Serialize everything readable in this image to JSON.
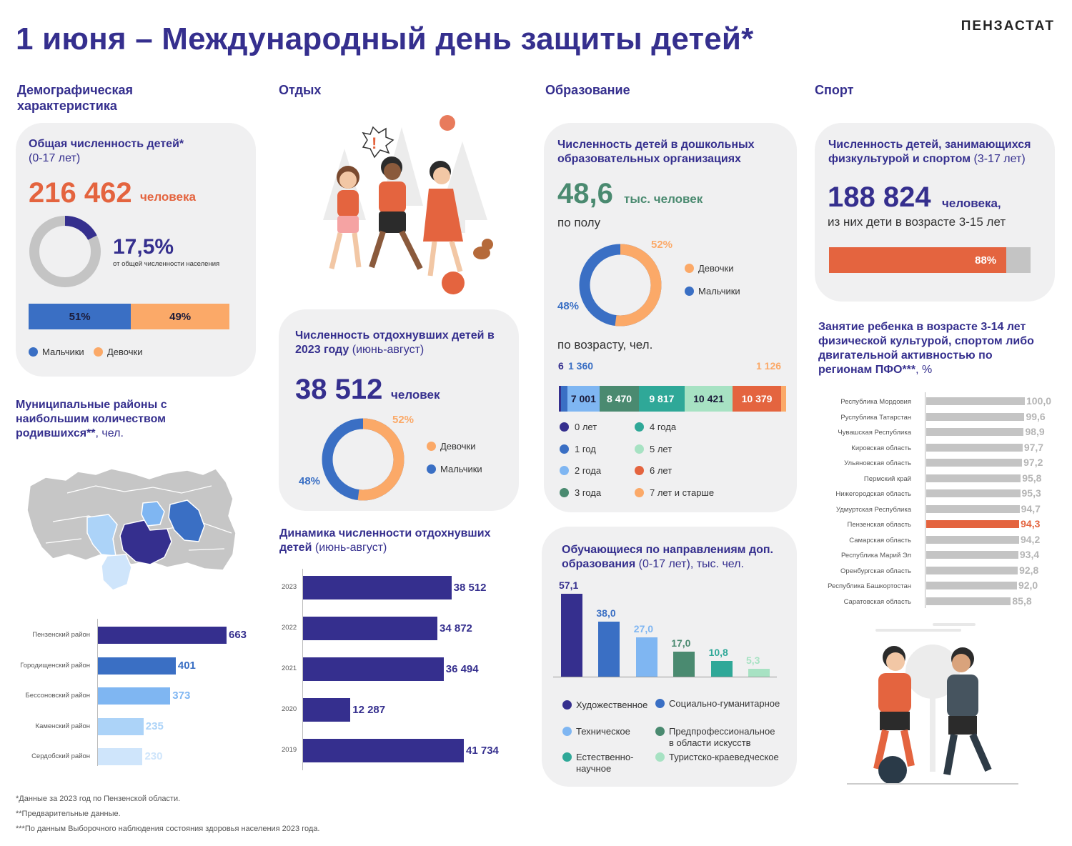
{
  "header": {
    "title": "1 июня – Международный день защиты детей*",
    "logo": "ПЕНЗАСТАТ"
  },
  "sections": {
    "demography": "Демографическая характеристика",
    "rest": "Отдых",
    "education": "Образование",
    "sport": "Спорт"
  },
  "colors": {
    "navy": "#352f8e",
    "blue": "#3a6fc4",
    "light_blue": "#7fb6f2",
    "orange": "#fba968",
    "red": "#e4643f",
    "teal_dark": "#4a8a70",
    "teal": "#2fa898",
    "mint": "#a7e2c3",
    "gray": "#c4c4c4",
    "card_bg": "#f0f0f1"
  },
  "total_children": {
    "heading": "Общая численность детей*",
    "subheading": "(0-17 лет)",
    "value": "216 462",
    "unit": "человека",
    "share": "17,5%",
    "share_note": "от общей численности населения",
    "share_fraction": 0.175,
    "boys_pct_label": "51%",
    "girls_pct_label": "49%",
    "boys_pct": 51,
    "girls_pct": 49,
    "legend_boys": "Мальчики",
    "legend_girls": "Девочки"
  },
  "births": {
    "heading": "Муниципальные районы с наибольшим количеством родившихся**",
    "heading_unit": ", чел.",
    "map_icon": "penza-region-map",
    "items": [
      {
        "label": "Пензенский район",
        "value": "663",
        "n": 663,
        "color": "#352f8e"
      },
      {
        "label": "Городищенский район",
        "value": "401",
        "n": 401,
        "color": "#3a6fc4"
      },
      {
        "label": "Бессоновский район",
        "value": "373",
        "n": 373,
        "color": "#7fb6f2"
      },
      {
        "label": "Каменский район",
        "value": "235",
        "n": 235,
        "color": "#acd3f8"
      },
      {
        "label": "Сердобский район",
        "value": "230",
        "n": 230,
        "color": "#cfe5fb"
      }
    ]
  },
  "rest": {
    "illustration": "children-playing-illustration",
    "heading": "Численность отдохнувших детей в 2023 году",
    "heading_note": "(июнь-август)",
    "value": "38 512",
    "unit": "человек",
    "girls_pct_label": "52%",
    "boys_pct_label": "48%",
    "girls_pct": 52,
    "boys_pct": 48,
    "legend_girls": "Девочки",
    "legend_boys": "Мальчики"
  },
  "rest_dynamics": {
    "heading": "Динамика численности отдохнувших детей",
    "heading_note": "(июнь-август)",
    "items": [
      {
        "year": "2023",
        "value": "38 512",
        "n": 38512
      },
      {
        "year": "2022",
        "value": "34 872",
        "n": 34872
      },
      {
        "year": "2021",
        "value": "36 494",
        "n": 36494
      },
      {
        "year": "2020",
        "value": "12 287",
        "n": 12287
      },
      {
        "year": "2019",
        "value": "41 734",
        "n": 41734
      }
    ]
  },
  "preschool": {
    "heading": "Численность детей в дошкольных образовательных организациях",
    "value": "48,6",
    "unit": "тыс. человек",
    "by_sex": "по полу",
    "girls_pct_label": "52%",
    "boys_pct_label": "48%",
    "girls_pct": 52,
    "boys_pct": 48,
    "legend_girls": "Девочки",
    "legend_boys": "Мальчики",
    "by_age": "по возрасту, чел.",
    "ages": [
      {
        "label": "0 лет",
        "value": "6",
        "n": 6,
        "color": "#352f8e"
      },
      {
        "label": "1 год",
        "value": "1 360",
        "n": 1360,
        "color": "#3a6fc4"
      },
      {
        "label": "2 года",
        "value": "7 001",
        "n": 7001,
        "color": "#7fb6f2"
      },
      {
        "label": "3 года",
        "value": "8 470",
        "n": 8470,
        "color": "#4a8a70"
      },
      {
        "label": "4 года",
        "value": "9 817",
        "n": 9817,
        "color": "#2fa898"
      },
      {
        "label": "5 лет",
        "value": "10 421",
        "n": 10421,
        "color": "#a7e2c3"
      },
      {
        "label": "6 лет",
        "value": "10 379",
        "n": 10379,
        "color": "#e4643f"
      },
      {
        "label": "7 лет и старше",
        "value": "1 126",
        "n": 1126,
        "color": "#fba968"
      }
    ]
  },
  "additional_education": {
    "heading": "Обучающиеся по направлениям доп. образования",
    "heading_note": "(0-17 лет), тыс. чел.",
    "items": [
      {
        "label": "Художественное",
        "value": "57,1",
        "n": 57.1,
        "color": "#352f8e"
      },
      {
        "label": "Социально-гуманитарное",
        "value": "38,0",
        "n": 38.0,
        "color": "#3a6fc4"
      },
      {
        "label": "Техническое",
        "value": "27,0",
        "n": 27.0,
        "color": "#7fb6f2"
      },
      {
        "label": "Предпрофессиональное в области искусств",
        "value": "17,0",
        "n": 17.0,
        "color": "#4a8a70"
      },
      {
        "label": "Естественно-научное",
        "value": "10,8",
        "n": 10.8,
        "color": "#2fa898"
      },
      {
        "label": "Туристско-краеведческое",
        "value": "5,3",
        "n": 5.3,
        "color": "#a7e2c3"
      }
    ]
  },
  "sport": {
    "heading": "Численность детей, занимающихся физкультурой и спортом",
    "heading_note": "(3-17 лет)",
    "value": "188 824",
    "unit": "человека,",
    "note": "из них дети в возрасте 3-15 лет",
    "pct_label": "88%",
    "pct": 88
  },
  "sport_regions": {
    "heading": "Занятие ребенка в возрасте 3-14 лет физической культурой, спортом либо двигательной активностью по регионам ПФО***",
    "heading_unit": ", %",
    "illustration": "kids-football-illustration",
    "items": [
      {
        "label": "Республика Мордовия",
        "value": "100,0",
        "n": 100.0
      },
      {
        "label": "Руспублика Татарстан",
        "value": "99,6",
        "n": 99.6
      },
      {
        "label": "Чувашская Республика",
        "value": "98,9",
        "n": 98.9
      },
      {
        "label": "Кировская область",
        "value": "97,7",
        "n": 97.7
      },
      {
        "label": "Ульяновская область",
        "value": "97,2",
        "n": 97.2
      },
      {
        "label": "Пермский край",
        "value": "95,8",
        "n": 95.8
      },
      {
        "label": "Нижегородская область",
        "value": "95,3",
        "n": 95.3
      },
      {
        "label": "Удмуртская Республика",
        "value": "94,7",
        "n": 94.7
      },
      {
        "label": "Пензенская область",
        "value": "94,3",
        "n": 94.3,
        "highlight": true
      },
      {
        "label": "Самарская область",
        "value": "94,2",
        "n": 94.2
      },
      {
        "label": "Республика Марий Эл",
        "value": "93,4",
        "n": 93.4
      },
      {
        "label": "Оренбургская область",
        "value": "92,8",
        "n": 92.8
      },
      {
        "label": "Республика Башкортостан",
        "value": "92,0",
        "n": 92.0
      },
      {
        "label": "Саратовская область",
        "value": "85,8",
        "n": 85.8
      }
    ]
  },
  "footnotes": [
    "*Данные за 2023 год по Пензенской области.",
    "**Предварительные данные.",
    "***По данным  Выборочного наблюдения состояния здоровья населения 2023 года."
  ]
}
